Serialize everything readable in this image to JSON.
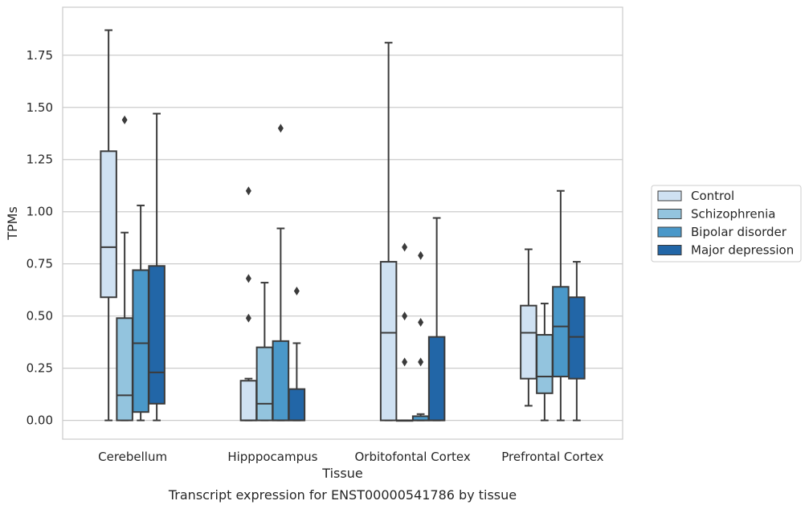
{
  "chart_data": {
    "type": "box",
    "title": "",
    "caption": "Transcript expression for ENST00000541786 by tissue",
    "xlabel": "Tissue",
    "ylabel": "TPMs",
    "ylim": [
      -0.09,
      1.98
    ],
    "yticks": [
      0.0,
      0.25,
      0.5,
      0.75,
      1.0,
      1.25,
      1.5,
      1.75
    ],
    "ytick_labels": [
      "0.00",
      "0.25",
      "0.50",
      "0.75",
      "1.00",
      "1.25",
      "1.50",
      "1.75"
    ],
    "grid": "horizontal",
    "legend_position": "right",
    "categories": [
      "Cerebellum",
      "Hipppocampus",
      "Orbitofontal Cortex",
      "Prefrontal Cortex"
    ],
    "series": [
      {
        "name": "Control",
        "color": "#cfe1f2",
        "boxes": [
          {
            "whisker_low": 0.0,
            "q1": 0.59,
            "median": 0.83,
            "q3": 1.29,
            "whisker_high": 1.87,
            "outliers": []
          },
          {
            "whisker_low": 0.0,
            "q1": 0.0,
            "median": 0.0,
            "q3": 0.19,
            "whisker_high": 0.2,
            "outliers": [
              0.49,
              0.68,
              1.1
            ]
          },
          {
            "whisker_low": 0.0,
            "q1": 0.0,
            "median": 0.42,
            "q3": 0.76,
            "whisker_high": 1.81,
            "outliers": []
          },
          {
            "whisker_low": 0.07,
            "q1": 0.2,
            "median": 0.42,
            "q3": 0.55,
            "whisker_high": 0.82,
            "outliers": []
          }
        ]
      },
      {
        "name": "Schizophrenia",
        "color": "#93c4de",
        "boxes": [
          {
            "whisker_low": 0.0,
            "q1": 0.0,
            "median": 0.12,
            "q3": 0.49,
            "whisker_high": 0.9,
            "outliers": [
              1.44
            ]
          },
          {
            "whisker_low": 0.0,
            "q1": 0.0,
            "median": 0.08,
            "q3": 0.35,
            "whisker_high": 0.66,
            "outliers": []
          },
          {
            "whisker_low": 0.0,
            "q1": 0.0,
            "median": 0.0,
            "q3": 0.0,
            "whisker_high": 0.0,
            "outliers": [
              0.28,
              0.5,
              0.83
            ]
          },
          {
            "whisker_low": 0.0,
            "q1": 0.13,
            "median": 0.21,
            "q3": 0.41,
            "whisker_high": 0.56,
            "outliers": []
          }
        ]
      },
      {
        "name": "Bipolar disorder",
        "color": "#4a98c9",
        "boxes": [
          {
            "whisker_low": 0.0,
            "q1": 0.04,
            "median": 0.37,
            "q3": 0.72,
            "whisker_high": 1.03,
            "outliers": []
          },
          {
            "whisker_low": 0.0,
            "q1": 0.0,
            "median": 0.0,
            "q3": 0.38,
            "whisker_high": 0.92,
            "outliers": [
              1.4
            ]
          },
          {
            "whisker_low": 0.0,
            "q1": 0.0,
            "median": 0.0,
            "q3": 0.02,
            "whisker_high": 0.03,
            "outliers": [
              0.28,
              0.47,
              0.79
            ]
          },
          {
            "whisker_low": 0.0,
            "q1": 0.21,
            "median": 0.45,
            "q3": 0.64,
            "whisker_high": 1.1,
            "outliers": []
          }
        ]
      },
      {
        "name": "Major depression",
        "color": "#2266a7",
        "boxes": [
          {
            "whisker_low": 0.0,
            "q1": 0.08,
            "median": 0.23,
            "q3": 0.74,
            "whisker_high": 1.47,
            "outliers": []
          },
          {
            "whisker_low": 0.0,
            "q1": 0.0,
            "median": 0.0,
            "q3": 0.15,
            "whisker_high": 0.37,
            "outliers": [
              0.62
            ]
          },
          {
            "whisker_low": 0.0,
            "q1": 0.0,
            "median": 0.0,
            "q3": 0.4,
            "whisker_high": 0.97,
            "outliers": []
          },
          {
            "whisker_low": 0.0,
            "q1": 0.2,
            "median": 0.4,
            "q3": 0.59,
            "whisker_high": 0.76,
            "outliers": []
          }
        ]
      }
    ]
  }
}
